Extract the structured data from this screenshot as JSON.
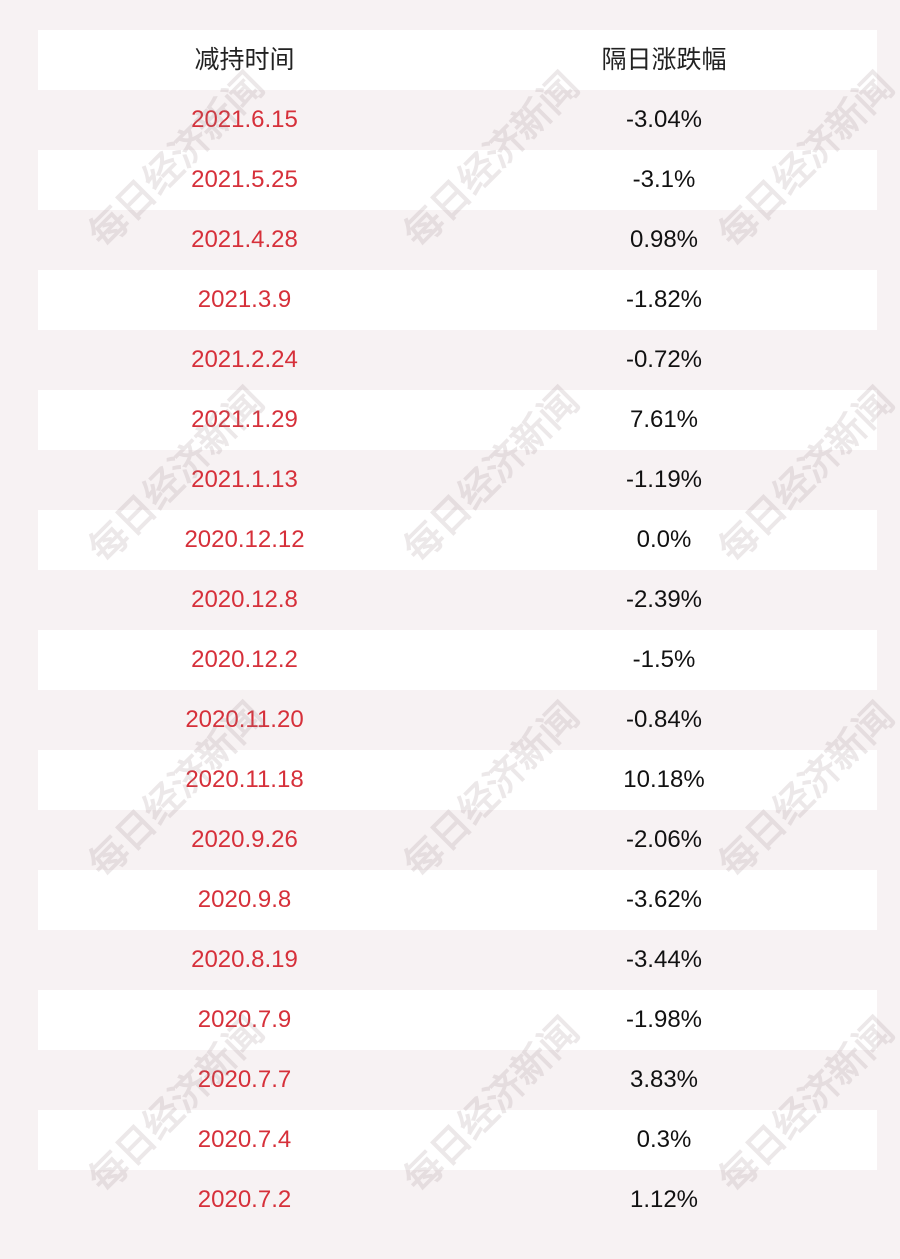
{
  "table": {
    "headers": [
      "减持时间",
      "隔日涨跌幅"
    ],
    "rows": [
      {
        "date": "2021.6.15",
        "change": "-3.04%"
      },
      {
        "date": "2021.5.25",
        "change": "-3.1%"
      },
      {
        "date": "2021.4.28",
        "change": "0.98%"
      },
      {
        "date": "2021.3.9",
        "change": "-1.82%"
      },
      {
        "date": "2021.2.24",
        "change": "-0.72%"
      },
      {
        "date": "2021.1.29",
        "change": "7.61%"
      },
      {
        "date": "2021.1.13",
        "change": "-1.19%"
      },
      {
        "date": "2020.12.12",
        "change": "0.0%"
      },
      {
        "date": "2020.12.8",
        "change": "-2.39%"
      },
      {
        "date": "2020.12.2",
        "change": "-1.5%"
      },
      {
        "date": "2020.11.20",
        "change": "-0.84%"
      },
      {
        "date": "2020.11.18",
        "change": "10.18%"
      },
      {
        "date": "2020.9.26",
        "change": "-2.06%"
      },
      {
        "date": "2020.9.8",
        "change": "-3.62%"
      },
      {
        "date": "2020.8.19",
        "change": "-3.44%"
      },
      {
        "date": "2020.7.9",
        "change": "-1.98%"
      },
      {
        "date": "2020.7.7",
        "change": "3.83%"
      },
      {
        "date": "2020.7.4",
        "change": "0.3%"
      },
      {
        "date": "2020.7.2",
        "change": "1.12%"
      }
    ]
  },
  "watermark": "每日经济新闻",
  "colors": {
    "date_text": "#d6303a",
    "value_text": "#111111",
    "row_white": "#ffffff",
    "row_shade": "#f7f2f3"
  }
}
